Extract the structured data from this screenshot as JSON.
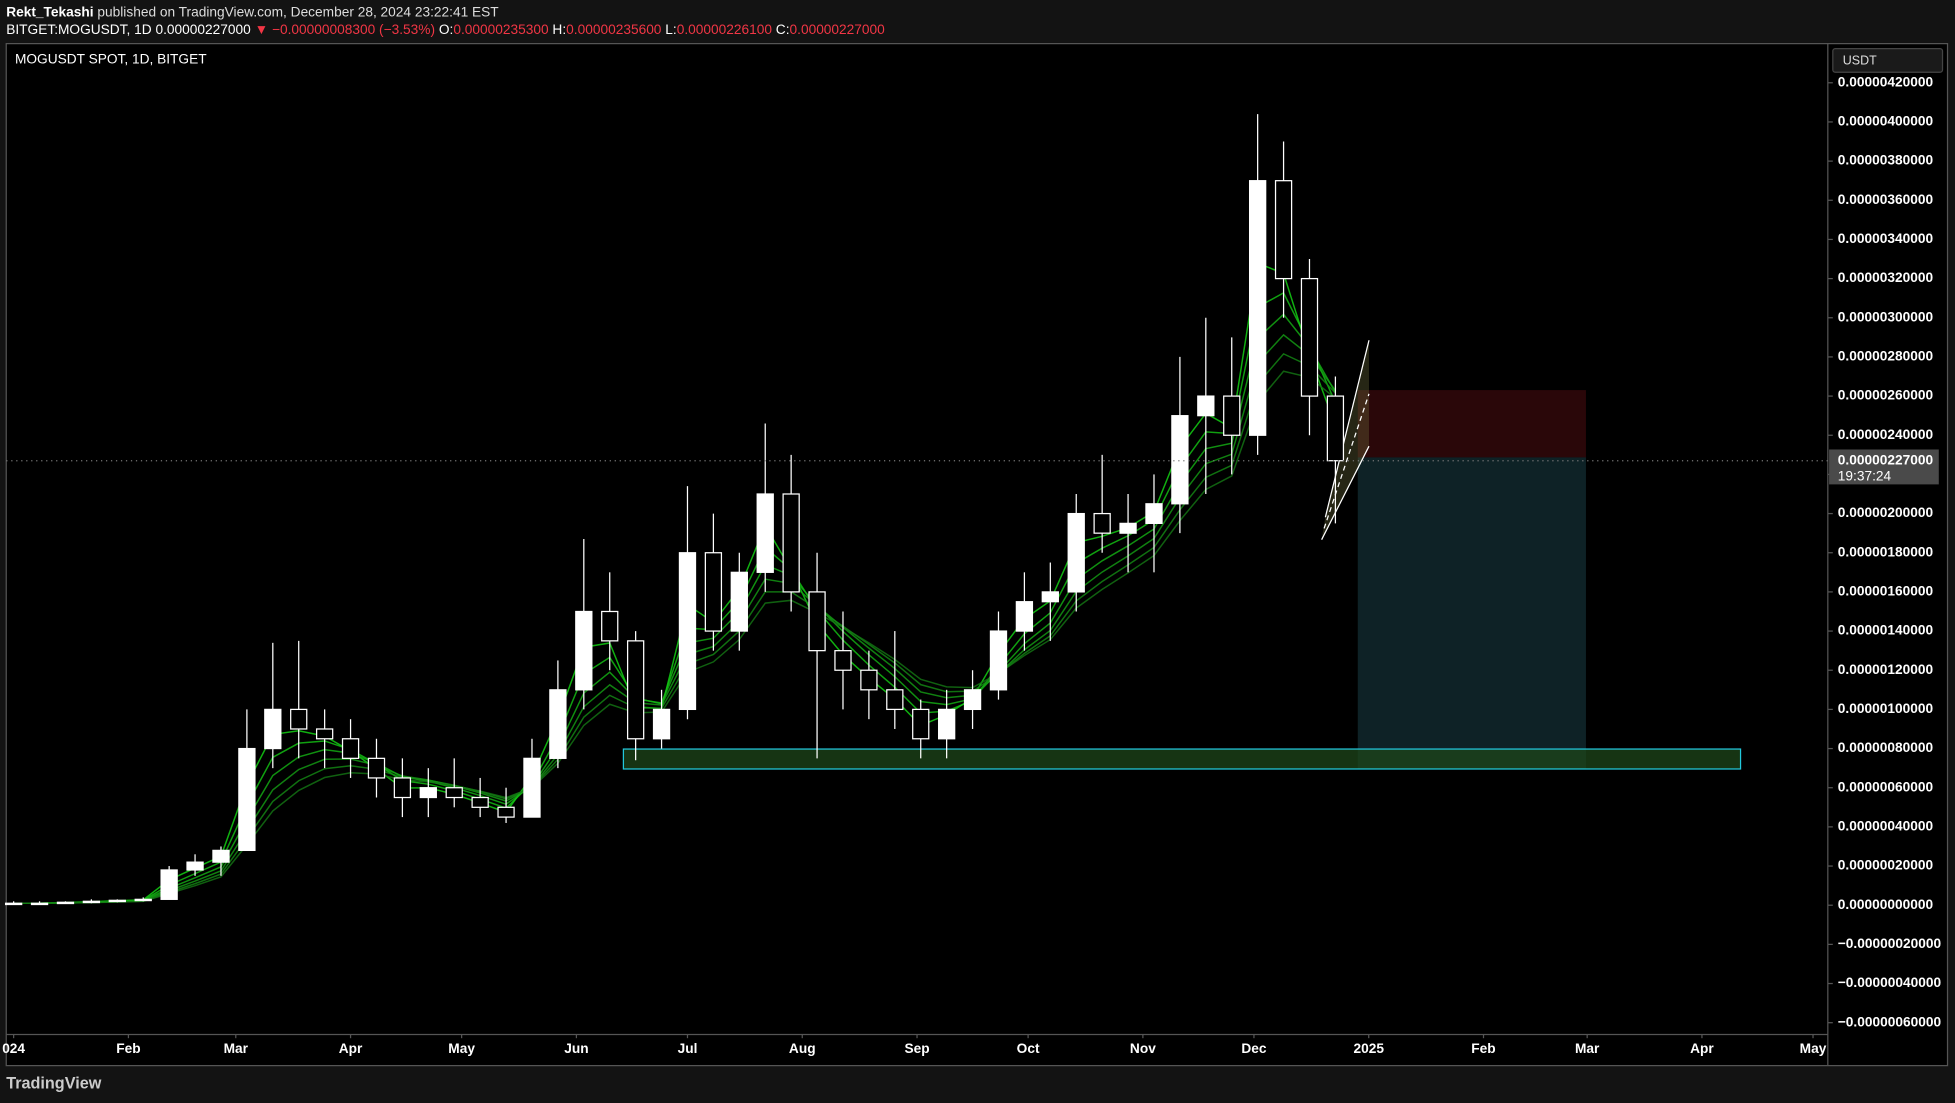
{
  "header": {
    "author": "Rekt_Tekashi",
    "published": "published on TradingView.com, December 28, 2024 23:22:41 EST",
    "symbol": "BITGET:MOGUSDT, 1D",
    "last": "0.00000227000",
    "change": "▼ −0.00000008300 (−3.53%)",
    "o_label": "O:",
    "o": "0.00000235300",
    "h_label": "H:",
    "h": "0.00000235600",
    "l_label": "L:",
    "l": "0.00000226100",
    "c_label": "C:",
    "c": "0.00000227000"
  },
  "brand": "TradingView",
  "chart_data": {
    "type": "candlestick",
    "title": "MOGUSDT SPOT, 1D, BITGET",
    "unit": "USDT",
    "price_label": "0.00000227000",
    "countdown": "19:37:24",
    "last_price": 2.27e-06,
    "x": [
      0,
      7,
      14,
      21,
      28,
      35,
      42,
      49,
      56,
      63,
      70,
      77,
      84,
      91,
      98,
      105,
      112,
      119,
      126,
      133,
      140,
      147,
      154,
      161,
      168,
      175,
      182,
      189,
      196,
      203,
      210,
      217,
      224,
      231,
      238,
      245,
      252,
      259,
      266,
      273,
      280,
      287,
      294,
      301,
      308,
      315,
      322,
      329,
      336,
      343,
      350,
      357
    ],
    "open": [
      1e-08,
      1e-08,
      1e-08,
      1.5e-08,
      2e-08,
      2.5e-08,
      3e-08,
      1.8e-07,
      2.2e-07,
      2.8e-07,
      8e-07,
      1e-06,
      9e-07,
      8.5e-07,
      7.5e-07,
      6.5e-07,
      5.5e-07,
      6e-07,
      5.5e-07,
      5e-07,
      4.5e-07,
      7.5e-07,
      1.1e-06,
      1.5e-06,
      1.35e-06,
      8.5e-07,
      1e-06,
      1.8e-06,
      1.4e-06,
      1.7e-06,
      2.1e-06,
      1.6e-06,
      1.3e-06,
      1.2e-06,
      1.1e-06,
      1e-06,
      8.5e-07,
      1e-06,
      1.1e-06,
      1.4e-06,
      1.55e-06,
      1.6e-06,
      2e-06,
      1.9e-06,
      1.95e-06,
      2.05e-06,
      2.5e-06,
      2.6e-06,
      2.4e-06,
      3.7e-06,
      3.2e-06,
      2.6e-06
    ],
    "high": [
      2e-08,
      2e-08,
      2e-08,
      3e-08,
      3e-08,
      4e-08,
      2e-07,
      2.6e-07,
      3e-07,
      1e-06,
      1.34e-06,
      1.35e-06,
      1e-06,
      9.5e-07,
      8.5e-07,
      7.5e-07,
      7e-07,
      7.5e-07,
      6.5e-07,
      6e-07,
      8.5e-07,
      1.25e-06,
      1.87e-06,
      1.7e-06,
      1.4e-06,
      1.1e-06,
      2.14e-06,
      2e-06,
      1.8e-06,
      2.46e-06,
      2.3e-06,
      1.8e-06,
      1.5e-06,
      1.3e-06,
      1.4e-06,
      1.05e-06,
      1.1e-06,
      1.2e-06,
      1.5e-06,
      1.7e-06,
      1.75e-06,
      2.1e-06,
      2.3e-06,
      2.1e-06,
      2.2e-06,
      2.8e-06,
      3e-06,
      2.9e-06,
      4.04e-06,
      3.9e-06,
      3.3e-06,
      2.7e-06
    ],
    "low": [
      5e-09,
      5e-09,
      1e-08,
      1e-08,
      1.5e-08,
      2e-08,
      3e-08,
      1.5e-07,
      1.5e-07,
      2.8e-07,
      7e-07,
      7.5e-07,
      7e-07,
      6.5e-07,
      5.5e-07,
      4.5e-07,
      4.5e-07,
      5e-07,
      4.5e-07,
      4.2e-07,
      4.5e-07,
      7e-07,
      1e-06,
      1.2e-06,
      7.4e-07,
      8e-07,
      9.5e-07,
      1.3e-06,
      1.3e-06,
      1.6e-06,
      1.5e-06,
      7.5e-07,
      1e-06,
      9.5e-07,
      9e-07,
      7.5e-07,
      7.5e-07,
      9e-07,
      1.05e-06,
      1.3e-06,
      1.35e-06,
      1.5e-06,
      1.8e-06,
      1.7e-06,
      1.7e-06,
      1.9e-06,
      2.1e-06,
      2.2e-06,
      2.3e-06,
      3e-06,
      2.4e-06,
      1.95e-06
    ],
    "close": [
      1e-08,
      1e-08,
      1.5e-08,
      2e-08,
      2.5e-08,
      3e-08,
      1.8e-07,
      2.2e-07,
      2.8e-07,
      8e-07,
      1e-06,
      9e-07,
      8.5e-07,
      7.5e-07,
      6.5e-07,
      5.5e-07,
      6e-07,
      5.5e-07,
      5e-07,
      4.5e-07,
      7.5e-07,
      1.1e-06,
      1.5e-06,
      1.35e-06,
      8.5e-07,
      1e-06,
      1.8e-06,
      1.4e-06,
      1.7e-06,
      2.1e-06,
      1.6e-06,
      1.3e-06,
      1.2e-06,
      1.1e-06,
      1e-06,
      8.5e-07,
      1e-06,
      1.1e-06,
      1.4e-06,
      1.55e-06,
      1.6e-06,
      2e-06,
      1.9e-06,
      1.95e-06,
      2.05e-06,
      2.5e-06,
      2.6e-06,
      2.4e-06,
      3.7e-06,
      3.2e-06,
      2.6e-06,
      2.27e-06
    ],
    "up_color": "#ffffff",
    "down_color": "#000000",
    "wick_color": "#ffffff",
    "grid": false,
    "xlim": [
      -2,
      490
    ],
    "xticks": [
      {
        "value": 0,
        "label": "024"
      },
      {
        "value": 31,
        "label": "Feb"
      },
      {
        "value": 60,
        "label": "Mar"
      },
      {
        "value": 91,
        "label": "Apr"
      },
      {
        "value": 121,
        "label": "May"
      },
      {
        "value": 152,
        "label": "Jun"
      },
      {
        "value": 182,
        "label": "Jul"
      },
      {
        "value": 213,
        "label": "Aug"
      },
      {
        "value": 244,
        "label": "Sep"
      },
      {
        "value": 274,
        "label": "Oct"
      },
      {
        "value": 305,
        "label": "Nov"
      },
      {
        "value": 335,
        "label": "Dec"
      },
      {
        "value": 366,
        "label": "2025"
      },
      {
        "value": 397,
        "label": "Feb"
      },
      {
        "value": 425,
        "label": "Mar"
      },
      {
        "value": 456,
        "label": "Apr"
      },
      {
        "value": 486,
        "label": "May"
      }
    ],
    "ylim": [
      -6.6e-07,
      4.4e-06
    ],
    "yticks": [
      {
        "value": 4.2e-06,
        "label": "0.00000420000"
      },
      {
        "value": 4e-06,
        "label": "0.00000400000"
      },
      {
        "value": 3.8e-06,
        "label": "0.00000380000"
      },
      {
        "value": 3.6e-06,
        "label": "0.00000360000"
      },
      {
        "value": 3.4e-06,
        "label": "0.00000340000"
      },
      {
        "value": 3.2e-06,
        "label": "0.00000320000"
      },
      {
        "value": 3e-06,
        "label": "0.00000300000"
      },
      {
        "value": 2.8e-06,
        "label": "0.00000280000"
      },
      {
        "value": 2.6e-06,
        "label": "0.00000260000"
      },
      {
        "value": 2.4e-06,
        "label": "0.00000240000"
      },
      {
        "value": 2.2e-06,
        "label": "0.00000220000"
      },
      {
        "value": 2e-06,
        "label": "0.00000200000"
      },
      {
        "value": 1.8e-06,
        "label": "0.00000180000"
      },
      {
        "value": 1.6e-06,
        "label": "0.00000160000"
      },
      {
        "value": 1.4e-06,
        "label": "0.00000140000"
      },
      {
        "value": 1.2e-06,
        "label": "0.00000120000"
      },
      {
        "value": 1e-06,
        "label": "0.00000100000"
      },
      {
        "value": 8e-07,
        "label": "0.00000080000"
      },
      {
        "value": 6e-07,
        "label": "0.00000060000"
      },
      {
        "value": 4e-07,
        "label": "0.00000040000"
      },
      {
        "value": 2e-07,
        "label": "0.00000020000"
      },
      {
        "value": 0,
        "label": "0.00000000000"
      },
      {
        "value": -2e-07,
        "label": "−0.00000020000"
      },
      {
        "value": -4e-07,
        "label": "−0.00000040000"
      },
      {
        "value": -6e-07,
        "label": "−0.00000060000"
      }
    ]
  }
}
